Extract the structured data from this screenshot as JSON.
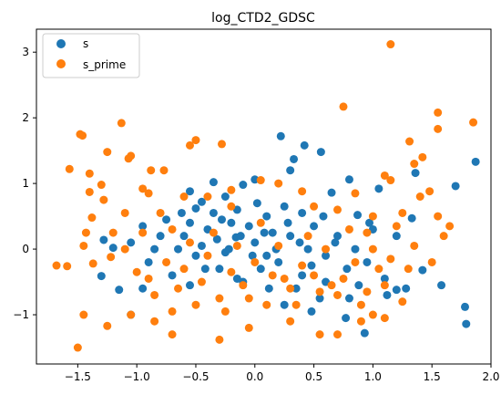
{
  "chart_data": {
    "type": "scatter",
    "title": "log_CTD2_GDSC",
    "xlabel": "",
    "ylabel": "",
    "xlim": [
      -1.85,
      2.0
    ],
    "ylim": [
      -1.75,
      3.35
    ],
    "x_ticks": [
      -1.5,
      -1.0,
      -0.5,
      0.0,
      0.5,
      1.0,
      1.5,
      2.0
    ],
    "x_tick_labels": [
      "−1.5",
      "−1.0",
      "−0.5",
      "0.0",
      "0.5",
      "1.0",
      "1.5",
      "2.0"
    ],
    "y_ticks": [
      -1,
      0,
      1,
      2,
      3
    ],
    "y_tick_labels": [
      "−1",
      "0",
      "1",
      "2",
      "3"
    ],
    "grid": false,
    "legend_position": "top-left",
    "series": [
      {
        "name": "s",
        "color": "#1f77b4",
        "points": [
          [
            1.87,
            1.33
          ],
          [
            1.78,
            -0.88
          ],
          [
            1.79,
            -1.14
          ],
          [
            1.7,
            0.96
          ],
          [
            1.58,
            -0.55
          ],
          [
            1.42,
            -0.32
          ],
          [
            1.33,
            0.47
          ],
          [
            1.36,
            1.16
          ],
          [
            1.2,
            -0.62
          ],
          [
            1.12,
            -0.7
          ],
          [
            1.05,
            0.92
          ],
          [
            0.97,
            0.4
          ],
          [
            0.93,
            -1.28
          ],
          [
            0.87,
            0.52
          ],
          [
            0.8,
            -0.75
          ],
          [
            0.77,
            -1.05
          ],
          [
            0.8,
            1.06
          ],
          [
            0.65,
            0.86
          ],
          [
            0.6,
            -0.5
          ],
          [
            0.56,
            1.48
          ],
          [
            0.48,
            -0.95
          ],
          [
            0.42,
            1.58
          ],
          [
            0.33,
            1.37
          ],
          [
            0.3,
            1.2
          ],
          [
            0.22,
            1.72
          ],
          [
            0.25,
            -0.85
          ],
          [
            0.1,
            -0.1
          ],
          [
            0.0,
            1.06
          ],
          [
            -0.1,
            0.98
          ],
          [
            -0.16,
            0.18
          ],
          [
            -0.25,
            0.8
          ],
          [
            -0.35,
            1.02
          ],
          [
            -0.45,
            0.72
          ],
          [
            -0.55,
            0.88
          ],
          [
            -0.62,
            0.55
          ],
          [
            -0.7,
            -0.4
          ],
          [
            -0.8,
            0.2
          ],
          [
            -0.9,
            -0.2
          ],
          [
            -0.95,
            -0.6
          ],
          [
            -1.05,
            -1.0
          ],
          [
            -1.15,
            -0.62
          ],
          [
            -1.2,
            0.02
          ],
          [
            -1.3,
            -0.41
          ],
          [
            -1.28,
            0.14
          ],
          [
            -0.6,
            0.2
          ],
          [
            -0.5,
            -0.1
          ],
          [
            -0.4,
            0.3
          ],
          [
            -0.3,
            -0.3
          ],
          [
            -0.2,
            0.4
          ],
          [
            -0.1,
            -0.5
          ],
          [
            0.0,
            0.1
          ],
          [
            0.1,
            0.5
          ],
          [
            0.2,
            -0.2
          ],
          [
            0.3,
            0.2
          ],
          [
            0.4,
            -0.4
          ],
          [
            0.5,
            0.35
          ],
          [
            0.6,
            -0.1
          ],
          [
            0.7,
            0.2
          ],
          [
            -0.45,
            0.05
          ],
          [
            -0.35,
            0.55
          ],
          [
            -0.25,
            -0.05
          ],
          [
            -0.15,
            0.6
          ],
          [
            -0.05,
            0.35
          ],
          [
            0.05,
            -0.3
          ],
          [
            0.15,
            0.25
          ],
          [
            0.25,
            0.65
          ],
          [
            0.35,
            -0.6
          ],
          [
            0.45,
            0.0
          ],
          [
            0.55,
            -0.75
          ],
          [
            -0.55,
            -0.55
          ],
          [
            -0.65,
            0.0
          ],
          [
            -0.75,
            0.45
          ],
          [
            -0.85,
            0.0
          ],
          [
            -0.55,
            0.4
          ],
          [
            -0.42,
            -0.3
          ],
          [
            -0.32,
            0.15
          ],
          [
            -0.22,
            0.0
          ],
          [
            -0.12,
            0.2
          ],
          [
            -0.02,
            -0.1
          ],
          [
            0.08,
            0.25
          ],
          [
            0.18,
            0.0
          ],
          [
            0.28,
            0.4
          ],
          [
            0.38,
            0.1
          ],
          [
            0.48,
            -0.25
          ],
          [
            0.58,
            0.5
          ],
          [
            0.68,
            0.1
          ],
          [
            0.78,
            -0.3
          ],
          [
            0.88,
            -0.55
          ],
          [
            1.0,
            0.3
          ],
          [
            1.1,
            -0.45
          ],
          [
            1.2,
            0.2
          ],
          [
            1.28,
            -0.6
          ],
          [
            0.95,
            -0.2
          ],
          [
            0.85,
            0.0
          ],
          [
            -0.95,
            0.35
          ],
          [
            -1.05,
            0.1
          ],
          [
            -0.15,
            -0.45
          ],
          [
            0.12,
            -0.6
          ],
          [
            0.4,
            0.55
          ],
          [
            -0.5,
            0.62
          ],
          [
            -0.28,
            0.45
          ],
          [
            0.02,
            0.7
          ]
        ]
      },
      {
        "name": "s_prime",
        "color": "#ff7f0e",
        "points": [
          [
            1.15,
            3.12
          ],
          [
            1.85,
            1.93
          ],
          [
            1.55,
            2.08
          ],
          [
            1.55,
            1.83
          ],
          [
            1.31,
            1.64
          ],
          [
            0.75,
            2.17
          ],
          [
            -0.5,
            1.66
          ],
          [
            -0.55,
            1.58
          ],
          [
            -0.28,
            1.6
          ],
          [
            -1.13,
            1.92
          ],
          [
            -1.46,
            1.73
          ],
          [
            -1.48,
            1.75
          ],
          [
            -1.57,
            1.22
          ],
          [
            -1.25,
            1.48
          ],
          [
            -1.05,
            1.42
          ],
          [
            -1.07,
            1.38
          ],
          [
            -0.88,
            1.2
          ],
          [
            -0.77,
            1.2
          ],
          [
            -1.4,
            1.15
          ],
          [
            -1.3,
            0.98
          ],
          [
            -0.95,
            0.92
          ],
          [
            -0.9,
            0.85
          ],
          [
            -1.4,
            0.87
          ],
          [
            -1.28,
            0.75
          ],
          [
            -1.38,
            0.48
          ],
          [
            -1.43,
            0.25
          ],
          [
            -1.45,
            0.05
          ],
          [
            -1.22,
            -0.12
          ],
          [
            -1.37,
            -0.22
          ],
          [
            -1.59,
            -0.26
          ],
          [
            -1.68,
            -0.25
          ],
          [
            -1.45,
            -1.0
          ],
          [
            -1.5,
            -1.5
          ],
          [
            -1.25,
            -1.17
          ],
          [
            -1.05,
            -1.0
          ],
          [
            -0.85,
            -1.1
          ],
          [
            -0.7,
            -1.3
          ],
          [
            -0.3,
            -1.38
          ],
          [
            -0.05,
            -1.2
          ],
          [
            0.3,
            -1.1
          ],
          [
            0.55,
            -1.3
          ],
          [
            0.7,
            -1.3
          ],
          [
            0.9,
            -1.1
          ],
          [
            1.0,
            -1.0
          ],
          [
            1.1,
            -1.05
          ],
          [
            1.25,
            -0.8
          ],
          [
            1.35,
            1.3
          ],
          [
            1.42,
            1.4
          ],
          [
            1.48,
            0.88
          ],
          [
            1.55,
            0.5
          ],
          [
            1.65,
            0.35
          ],
          [
            1.4,
            0.8
          ],
          [
            1.25,
            0.55
          ],
          [
            1.1,
            1.12
          ],
          [
            1.15,
            1.05
          ],
          [
            1.0,
            0.5
          ],
          [
            0.95,
            0.25
          ],
          [
            0.85,
            0.85
          ],
          [
            0.7,
            0.6
          ],
          [
            0.5,
            0.65
          ],
          [
            0.4,
            0.88
          ],
          [
            0.2,
            1.0
          ],
          [
            0.05,
            1.05
          ],
          [
            -0.2,
            0.9
          ],
          [
            -0.4,
            0.8
          ],
          [
            -0.6,
            0.8
          ],
          [
            -0.8,
            0.55
          ],
          [
            -0.95,
            0.25
          ],
          [
            -1.1,
            0.0
          ],
          [
            -1.0,
            -0.35
          ],
          [
            -0.85,
            -0.7
          ],
          [
            -0.7,
            -0.95
          ],
          [
            -0.5,
            -0.85
          ],
          [
            -0.3,
            -0.75
          ],
          [
            -0.1,
            -0.55
          ],
          [
            0.1,
            -0.85
          ],
          [
            0.3,
            -0.6
          ],
          [
            0.5,
            -0.4
          ],
          [
            0.7,
            -0.7
          ],
          [
            0.9,
            -0.85
          ],
          [
            1.1,
            -0.55
          ],
          [
            1.3,
            -0.3
          ],
          [
            1.5,
            -0.2
          ],
          [
            1.6,
            0.2
          ],
          [
            -0.6,
            -0.3
          ],
          [
            -0.4,
            -0.1
          ],
          [
            -0.2,
            -0.35
          ],
          [
            0.0,
            -0.2
          ],
          [
            0.2,
            0.05
          ],
          [
            0.4,
            -0.25
          ],
          [
            0.6,
            0.0
          ],
          [
            0.8,
            0.3
          ],
          [
            1.0,
            0.0
          ],
          [
            1.2,
            0.35
          ],
          [
            -0.75,
            -0.2
          ],
          [
            -0.55,
            0.1
          ],
          [
            -0.35,
            0.25
          ],
          [
            -0.15,
            0.05
          ],
          [
            0.05,
            0.4
          ],
          [
            0.25,
            -0.45
          ],
          [
            0.45,
            0.2
          ],
          [
            0.65,
            -0.55
          ],
          [
            0.85,
            -0.2
          ],
          [
            1.05,
            -0.3
          ],
          [
            -0.9,
            -0.45
          ],
          [
            -0.65,
            -0.6
          ],
          [
            -0.45,
            -0.5
          ],
          [
            -0.25,
            -0.95
          ],
          [
            -0.05,
            -0.75
          ],
          [
            0.15,
            -0.4
          ],
          [
            0.35,
            -0.85
          ],
          [
            0.55,
            -0.65
          ],
          [
            0.75,
            -0.45
          ],
          [
            0.95,
            -0.65
          ],
          [
            1.15,
            -0.15
          ],
          [
            1.35,
            0.05
          ],
          [
            -1.2,
            0.25
          ],
          [
            -1.1,
            0.55
          ],
          [
            -0.7,
            0.3
          ],
          [
            -0.2,
            0.65
          ]
        ]
      }
    ]
  }
}
